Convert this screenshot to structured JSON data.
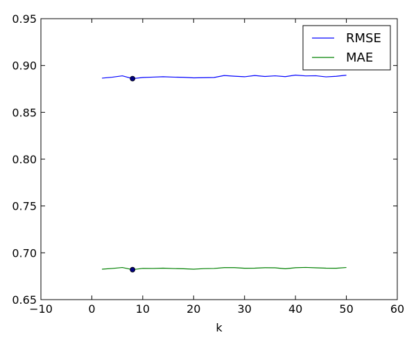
{
  "chart_data": {
    "type": "line",
    "title": "",
    "xlabel": "k",
    "ylabel": "",
    "xlim": [
      -10,
      60
    ],
    "ylim": [
      0.65,
      0.95
    ],
    "x_ticks": [
      -10,
      0,
      10,
      20,
      30,
      40,
      50,
      60
    ],
    "x_tick_labels": [
      "−10",
      "0",
      "10",
      "20",
      "30",
      "40",
      "50",
      "60"
    ],
    "y_ticks": [
      0.65,
      0.7,
      0.75,
      0.8,
      0.85,
      0.9,
      0.95
    ],
    "y_tick_labels": [
      "0.65",
      "0.70",
      "0.75",
      "0.80",
      "0.85",
      "0.90",
      "0.95"
    ],
    "grid": false,
    "legend_position": "top-right",
    "x": [
      2,
      4,
      6,
      8,
      10,
      12,
      14,
      16,
      18,
      20,
      22,
      24,
      26,
      28,
      30,
      32,
      34,
      36,
      38,
      40,
      42,
      44,
      46,
      48,
      50
    ],
    "series": [
      {
        "name": "RMSE",
        "color": "#0000ff",
        "values": [
          0.8865,
          0.8875,
          0.889,
          0.886,
          0.8872,
          0.8876,
          0.888,
          0.8876,
          0.8874,
          0.8868,
          0.887,
          0.8872,
          0.8893,
          0.8886,
          0.888,
          0.8893,
          0.8883,
          0.889,
          0.8881,
          0.8898,
          0.8889,
          0.8891,
          0.8879,
          0.8885,
          0.8897
        ],
        "marker": {
          "x": 8,
          "y": 0.886,
          "color": "#000080"
        }
      },
      {
        "name": "MAE",
        "color": "#008000",
        "values": [
          0.6825,
          0.6833,
          0.6843,
          0.682,
          0.6834,
          0.6833,
          0.6836,
          0.6832,
          0.683,
          0.6825,
          0.6831,
          0.6833,
          0.6842,
          0.6842,
          0.6835,
          0.6836,
          0.6841,
          0.684,
          0.683,
          0.6841,
          0.6844,
          0.684,
          0.6836,
          0.6835,
          0.6843
        ],
        "marker": {
          "x": 8,
          "y": 0.682,
          "color": "#000080"
        }
      }
    ]
  }
}
